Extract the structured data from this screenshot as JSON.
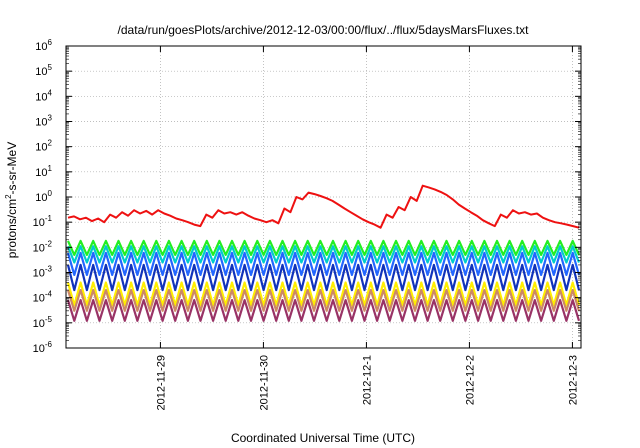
{
  "chart_data": {
    "type": "line",
    "title": "/data/run/goesPlots/archive/2012-12-03/00:00/flux/../flux/5daysMarsFluxes.txt",
    "xlabel": "Coordinated Universal Time (UTC)",
    "ylabel": "protons/cm²-s-sr-MeV",
    "ylabel_base": "protons/cm",
    "ylabel_sup": "2",
    "ylabel_rest": "-s-sr-MeV",
    "y_scale": "log",
    "ylim": [
      1e-06,
      1000000.0
    ],
    "y_ticks": [
      {
        "base": "10",
        "exp": "-6"
      },
      {
        "base": "10",
        "exp": "-5"
      },
      {
        "base": "10",
        "exp": "-4"
      },
      {
        "base": "10",
        "exp": "-3"
      },
      {
        "base": "10",
        "exp": "-2"
      },
      {
        "base": "10",
        "exp": "-1"
      },
      {
        "base": "10",
        "exp": "0"
      },
      {
        "base": "10",
        "exp": "1"
      },
      {
        "base": "10",
        "exp": "2"
      },
      {
        "base": "10",
        "exp": "3"
      },
      {
        "base": "10",
        "exp": "4"
      },
      {
        "base": "10",
        "exp": "5"
      },
      {
        "base": "10",
        "exp": "6"
      }
    ],
    "xlim": [
      "2012-11-28T02:00",
      "2012-12-03T02:00"
    ],
    "x_ticks": [
      "2012-11-29",
      "2012-11-30",
      "2012-12-1",
      "2012-12-2",
      "2012-12-3"
    ],
    "grid": true,
    "legend": "none",
    "series": [
      {
        "color": "#ee1111",
        "values": [
          0.15,
          0.17,
          0.13,
          0.15,
          0.11,
          0.14,
          0.1,
          0.2,
          0.15,
          0.25,
          0.18,
          0.3,
          0.22,
          0.28,
          0.2,
          0.3,
          0.22,
          0.18,
          0.14,
          0.12,
          0.1,
          0.08,
          0.07,
          0.2,
          0.15,
          0.3,
          0.22,
          0.25,
          0.2,
          0.25,
          0.18,
          0.14,
          0.12,
          0.1,
          0.12,
          0.09,
          0.35,
          0.25,
          1.0,
          0.8,
          1.5,
          1.3,
          1.1,
          0.9,
          0.7,
          0.5,
          0.35,
          0.25,
          0.18,
          0.13,
          0.1,
          0.08,
          0.06,
          0.2,
          0.15,
          0.4,
          0.3,
          1.0,
          0.7,
          2.8,
          2.4,
          2.0,
          1.6,
          1.2,
          0.8,
          0.5,
          0.35,
          0.25,
          0.18,
          0.12,
          0.09,
          0.07,
          0.2,
          0.15,
          0.3,
          0.22,
          0.25,
          0.2,
          0.22,
          0.15,
          0.12,
          0.1,
          0.09,
          0.08,
          0.07,
          0.06
        ]
      },
      {
        "color": "#22ee22",
        "cycle": {
          "low": 0.005,
          "high": 0.018,
          "count": 40
        }
      },
      {
        "color": "#00cccc",
        "cycle": {
          "low": 0.0025,
          "high": 0.011,
          "count": 40
        }
      },
      {
        "color": "#2266ff",
        "cycle": {
          "low": 0.0008,
          "high": 0.006,
          "count": 40
        }
      },
      {
        "color": "#1133bb",
        "cycle": {
          "low": 0.0002,
          "high": 0.002,
          "count": 40
        }
      },
      {
        "color": "#ffee00",
        "cycle": {
          "low": 5e-05,
          "high": 0.0004,
          "count": 40
        }
      },
      {
        "color": "#cc8866",
        "cycle": {
          "low": 3e-05,
          "high": 0.0002,
          "count": 40
        }
      },
      {
        "color": "#993366",
        "cycle": {
          "low": 1.2e-05,
          "high": 8e-05,
          "count": 40
        }
      }
    ]
  }
}
